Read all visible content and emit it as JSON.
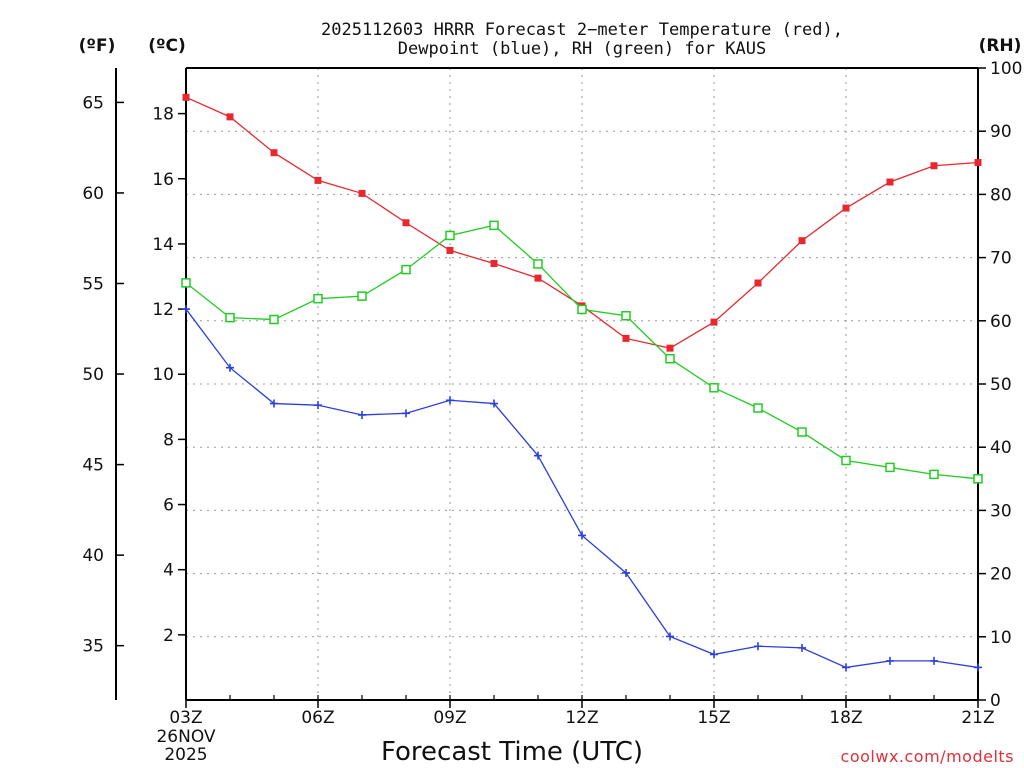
{
  "chart_data": {
    "type": "line",
    "title": "2025112603 HRRR Forecast 2−meter Temperature (red),",
    "subtitle": "Dewpoint (blue), RH (green) for KAUS",
    "xlabel": "Forecast Time (UTC)",
    "credit": "coolwx.com/modelts",
    "units": {
      "fahrenheit": "(ºF)",
      "celsius": "(ºC)",
      "rh": "(RH)"
    },
    "x": [
      0,
      1,
      2,
      3,
      4,
      5,
      6,
      7,
      8,
      9,
      10,
      11,
      12,
      13,
      14,
      15,
      16,
      17,
      18
    ],
    "x_ticks": [
      {
        "x": 0,
        "label": "03Z",
        "sub": [
          "26NOV",
          "2025"
        ]
      },
      {
        "x": 3,
        "label": "06Z"
      },
      {
        "x": 6,
        "label": "09Z"
      },
      {
        "x": 9,
        "label": "12Z"
      },
      {
        "x": 12,
        "label": "15Z"
      },
      {
        "x": 15,
        "label": "18Z"
      },
      {
        "x": 18,
        "label": "21Z"
      }
    ],
    "ylim_c": [
      0,
      19.4
    ],
    "ylim_rh": [
      0,
      100
    ],
    "ylim_f": [
      32,
      66.9
    ],
    "yticks_c": [
      2,
      4,
      6,
      8,
      10,
      12,
      14,
      16,
      18
    ],
    "yticks_f": [
      35,
      40,
      45,
      50,
      55,
      60,
      65
    ],
    "yticks_rh": [
      0,
      10,
      20,
      30,
      40,
      50,
      60,
      70,
      80,
      90,
      100
    ],
    "series": [
      {
        "name": "Temperature",
        "unit": "C",
        "color": "#e8282e",
        "marker": "filled-square",
        "values": [
          18.5,
          17.9,
          16.8,
          15.95,
          15.55,
          14.65,
          13.8,
          13.4,
          12.95,
          12.1,
          11.1,
          10.8,
          11.6,
          12.8,
          14.1,
          15.1,
          15.9,
          16.4,
          16.5
        ]
      },
      {
        "name": "Dewpoint",
        "unit": "C",
        "color": "#2c3fdc",
        "marker": "plus",
        "values": [
          12.0,
          10.2,
          9.1,
          9.05,
          8.75,
          8.8,
          9.2,
          9.1,
          7.5,
          5.05,
          3.9,
          1.95,
          1.4,
          1.65,
          1.6,
          1.0,
          1.2,
          1.2,
          1.0
        ]
      },
      {
        "name": "RH",
        "unit": "RH",
        "color": "#22cc22",
        "marker": "open-square",
        "values": [
          66,
          60.5,
          60.2,
          63.5,
          63.9,
          68.1,
          73.5,
          75.1,
          69.0,
          61.8,
          60.8,
          54.0,
          49.4,
          46.2,
          42.4,
          37.9,
          36.8,
          35.7,
          35.0
        ]
      }
    ],
    "grid": true
  }
}
